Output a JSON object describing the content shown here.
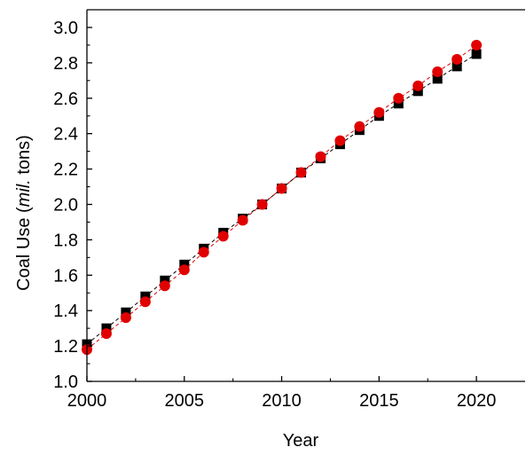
{
  "chart_data": {
    "type": "scatter",
    "title": "",
    "xlabel": "Year",
    "ylabel": {
      "prefix": "Coal Use (",
      "italic": "mil.",
      "suffix": " tons)"
    },
    "xlim": [
      2000,
      2022.5
    ],
    "ylim": [
      1.0,
      3.1
    ],
    "xticks": [
      2000,
      2005,
      2010,
      2015,
      2020
    ],
    "yticks": [
      1.0,
      1.2,
      1.4,
      1.6,
      1.8,
      2.0,
      2.2,
      2.4,
      2.6,
      2.8,
      3.0
    ],
    "ytick_labels": [
      "1.0",
      "1.2",
      "1.4",
      "1.6",
      "1.8",
      "2.0",
      "2.2",
      "2.4",
      "2.6",
      "2.8",
      "3.0"
    ],
    "grid": false,
    "legend": "none",
    "x": [
      2000,
      2001,
      2002,
      2003,
      2004,
      2005,
      2006,
      2007,
      2008,
      2009,
      2010,
      2011,
      2012,
      2013,
      2014,
      2015,
      2016,
      2017,
      2018,
      2019,
      2020
    ],
    "series": [
      {
        "marker": "square",
        "color": "#000000",
        "line_style": "dashed",
        "values": [
          1.21,
          1.3,
          1.39,
          1.48,
          1.57,
          1.66,
          1.75,
          1.84,
          1.92,
          2.0,
          2.09,
          2.18,
          2.26,
          2.34,
          2.42,
          2.5,
          2.57,
          2.64,
          2.71,
          2.78,
          2.85
        ]
      },
      {
        "marker": "circle",
        "color": "#e00000",
        "line_style": "dashed",
        "values": [
          1.18,
          1.27,
          1.36,
          1.45,
          1.54,
          1.63,
          1.73,
          1.82,
          1.91,
          2.0,
          2.09,
          2.18,
          2.27,
          2.36,
          2.44,
          2.52,
          2.6,
          2.67,
          2.75,
          2.82,
          2.9
        ]
      }
    ]
  }
}
